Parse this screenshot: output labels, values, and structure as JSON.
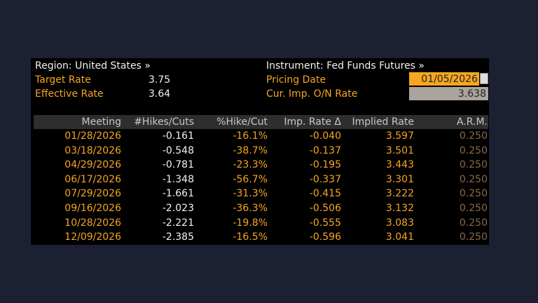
{
  "header": {
    "region": "Region: United States »",
    "instrument": "Instrument: Fed Funds Futures »",
    "left_fields": [
      {
        "label": "Target Rate",
        "value": "3.75"
      },
      {
        "label": "Effective Rate",
        "value": "3.64"
      }
    ],
    "right_fields": [
      {
        "label": "Pricing Date",
        "value": "01/05/2026"
      },
      {
        "label": "Cur. Imp. O/N Rate",
        "value": "3.638"
      }
    ]
  },
  "table": {
    "columns": [
      "Meeting",
      "#Hikes/Cuts",
      "%Hike/Cut",
      "Imp. Rate Δ",
      "Implied Rate",
      "A.R.M."
    ],
    "rows": [
      [
        "01/28/2026",
        "-0.161",
        "-16.1%",
        "-0.040",
        "3.597",
        "0.250"
      ],
      [
        "03/18/2026",
        "-0.548",
        "-38.7%",
        "-0.137",
        "3.501",
        "0.250"
      ],
      [
        "04/29/2026",
        "-0.781",
        "-23.3%",
        "-0.195",
        "3.443",
        "0.250"
      ],
      [
        "06/17/2026",
        "-1.348",
        "-56.7%",
        "-0.337",
        "3.301",
        "0.250"
      ],
      [
        "07/29/2026",
        "-1.661",
        "-31.3%",
        "-0.415",
        "3.222",
        "0.250"
      ],
      [
        "09/16/2026",
        "-2.023",
        "-36.3%",
        "-0.506",
        "3.132",
        "0.250"
      ],
      [
        "10/28/2026",
        "-2.221",
        "-19.8%",
        "-0.555",
        "3.083",
        "0.250"
      ],
      [
        "12/09/2026",
        "-2.385",
        "-16.5%",
        "-0.596",
        "3.041",
        "0.250"
      ]
    ]
  }
}
